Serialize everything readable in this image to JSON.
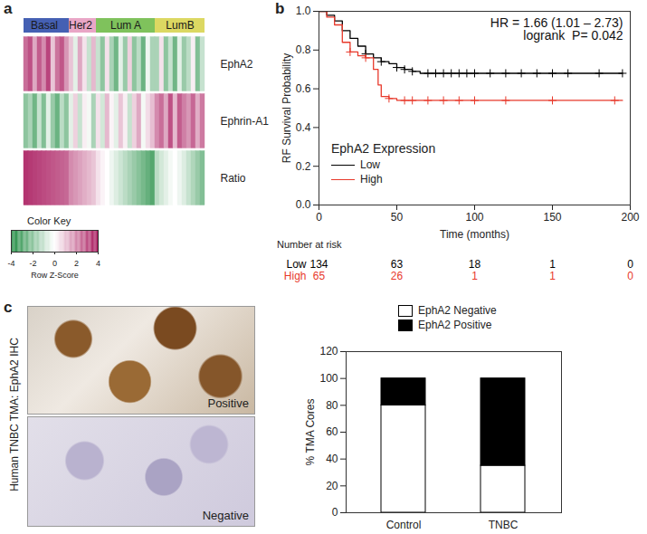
{
  "chart_data": [
    {
      "type": "heatmap",
      "title": "a",
      "categories": [
        "Basal",
        "Basal",
        "Basal",
        "Basal",
        "Basal",
        "Basal",
        "Basal",
        "Basal",
        "Basal",
        "Basal",
        "Her2",
        "Her2",
        "Her2",
        "Her2",
        "Her2",
        "Her2",
        "Lum A",
        "Lum A",
        "Lum A",
        "Lum A",
        "Lum A",
        "Lum A",
        "Lum A",
        "Lum A",
        "Lum A",
        "Lum A",
        "Lum A",
        "Lum A",
        "Lum A",
        "LumB",
        "LumB",
        "LumB",
        "LumB",
        "LumB",
        "LumB",
        "LumB",
        "LumB",
        "LumB",
        "LumB",
        "LumB"
      ],
      "groups": [
        {
          "name": "Basal",
          "color": "#4560b3"
        },
        {
          "name": "Her2",
          "color": "#e9a6c6"
        },
        {
          "name": "Lum A",
          "color": "#7fc25c"
        },
        {
          "name": "LumB",
          "color": "#dcd862"
        }
      ],
      "series": [
        {
          "name": "EphA2",
          "values": [
            2.5,
            3,
            1.5,
            2.8,
            2,
            3.2,
            1,
            2.4,
            2.9,
            1.8,
            1,
            -0.5,
            1.5,
            0.5,
            -1,
            1.2,
            -1,
            -2,
            0.5,
            -1.5,
            -2.5,
            -0.5,
            -1.8,
            0.8,
            -2,
            -1.2,
            -2.6,
            -0.3,
            -1.5,
            -1.5,
            0.5,
            -2,
            -1,
            -2.5,
            -0.5,
            -1.8,
            -1.2,
            0.3,
            -2.2,
            -1
          ]
        },
        {
          "name": "Ephrin-A1",
          "values": [
            -2,
            -1.5,
            -2.5,
            -1,
            -2.2,
            -0.5,
            -1.8,
            -2.6,
            -1.2,
            -2,
            -0.5,
            0.8,
            -1,
            0.3,
            -0.2,
            -1.5,
            0.5,
            -0.8,
            1.2,
            0.2,
            -0.5,
            1,
            0.3,
            -1,
            0.8,
            1.5,
            -0.2,
            0.6,
            1.1,
            2,
            2.5,
            1.5,
            3,
            1.2,
            2.8,
            2.2,
            1.8,
            2.6,
            1.4,
            2.3
          ]
        },
        {
          "name": "Ratio",
          "values": [
            3.5,
            3.4,
            3.3,
            3.2,
            3.1,
            3.0,
            2.9,
            2.8,
            2.7,
            2.6,
            2.0,
            1.8,
            1.6,
            1.4,
            1.2,
            1.0,
            0.5,
            0.2,
            0,
            -0.3,
            -0.6,
            -0.9,
            -1.2,
            -1.5,
            -1.8,
            -2.1,
            -2.4,
            -2.7,
            -3.0,
            -1.2,
            -0.8,
            -0.5,
            -0.2,
            0,
            -0.3,
            -0.6,
            -1,
            -1.4,
            -1.8,
            -2.2
          ]
        }
      ],
      "colorbar": {
        "title": "Color Key",
        "label": "Row Z-Score",
        "range": [
          -4,
          4
        ],
        "ticks": [
          -4,
          -2,
          0,
          2,
          4
        ],
        "colors": [
          "#1c8a3e",
          "#ffffff",
          "#a8175c"
        ]
      }
    },
    {
      "type": "line",
      "title": "b",
      "line_style": "step",
      "marker": "plus",
      "xlabel": "Time (months)",
      "ylabel": "RF Survival Probability",
      "xlim": [
        0,
        200
      ],
      "xticks": [
        0,
        50,
        100,
        150,
        200
      ],
      "ylim": [
        0,
        1
      ],
      "yticks": [
        {
          "value": 0,
          "label": "0.0"
        },
        {
          "value": 0.2,
          "label": "0.2"
        },
        {
          "value": 0.4,
          "label": "0.4"
        },
        {
          "value": 0.6,
          "label": "0.6"
        },
        {
          "value": 0.8,
          "label": "0.8"
        },
        {
          "value": 1,
          "label": "1.0"
        }
      ],
      "annotations": [
        "HR = 1.66 (1.01 – 2.73)",
        "logrank  P= 0.042"
      ],
      "legend": "bottom-left",
      "legend_title": "EphA2 Expression",
      "risk_table": {
        "title": "Number at risk",
        "times": [
          0,
          50,
          100,
          150,
          200
        ]
      },
      "series": [
        {
          "name": "Low",
          "color": "#000000",
          "x": [
            0,
            5,
            10,
            15,
            20,
            25,
            30,
            35,
            40,
            45,
            50,
            55,
            60,
            65,
            195
          ],
          "values": [
            1,
            0.98,
            0.95,
            0.9,
            0.86,
            0.82,
            0.78,
            0.76,
            0.74,
            0.73,
            0.71,
            0.7,
            0.69,
            0.68,
            0.68
          ],
          "censored": [
            30,
            40,
            50,
            55,
            60,
            70,
            75,
            80,
            85,
            90,
            95,
            100,
            110,
            120,
            130,
            140,
            150,
            160,
            180,
            195
          ],
          "at_risk": [
            134,
            63,
            18,
            1,
            0
          ]
        },
        {
          "name": "High",
          "color": "#e8392b",
          "x": [
            0,
            5,
            10,
            15,
            20,
            25,
            30,
            35,
            38,
            40,
            45,
            50,
            195
          ],
          "values": [
            1,
            0.97,
            0.93,
            0.84,
            0.79,
            0.77,
            0.76,
            0.7,
            0.62,
            0.56,
            0.55,
            0.54,
            0.54
          ],
          "censored": [
            20,
            30,
            45,
            55,
            60,
            70,
            80,
            90,
            100,
            120,
            150,
            190
          ],
          "at_risk": [
            65,
            26,
            1,
            1,
            0
          ]
        }
      ]
    },
    {
      "type": "bar",
      "title": "c",
      "stacked": true,
      "legend": "top",
      "categories": [
        "Control",
        "TNBC"
      ],
      "series": [
        {
          "name": "EphA2 Negative",
          "color": "#ffffff",
          "values": [
            80,
            35
          ]
        },
        {
          "name": "EphA2 Positive",
          "color": "#000000",
          "values": [
            20,
            65
          ]
        }
      ],
      "ylabel": "% TMA Cores",
      "ylim": [
        0,
        120
      ],
      "yticks": [
        0,
        20,
        40,
        60,
        80,
        100,
        120
      ],
      "images": {
        "title": "Human TNBC TMA: EphA2 IHC",
        "labels": [
          "Positive",
          "Negative"
        ]
      }
    }
  ]
}
